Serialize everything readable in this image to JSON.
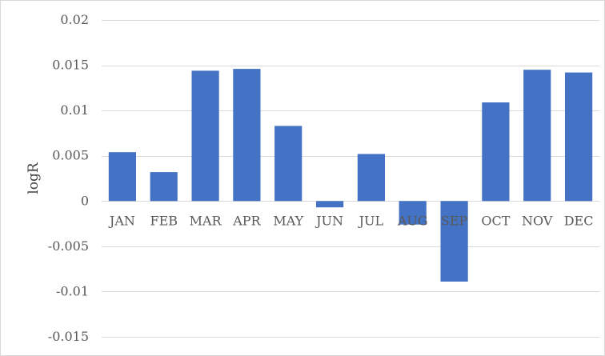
{
  "chart_data": {
    "type": "bar",
    "title": "",
    "xlabel": "",
    "ylabel": "logR",
    "categories": [
      "JAN",
      "FEB",
      "MAR",
      "APR",
      "MAY",
      "JUN",
      "JUL",
      "AUG",
      "SEP",
      "OCT",
      "NOV",
      "DEC"
    ],
    "values": [
      0.0054,
      0.0032,
      0.0144,
      0.0146,
      0.0083,
      -0.0007,
      0.0052,
      -0.0026,
      -0.0089,
      0.0109,
      0.0145,
      0.0142
    ],
    "ylim": [
      -0.015,
      0.02
    ],
    "yticks": [
      0.02,
      0.015,
      0.01,
      0.005,
      0,
      -0.005,
      -0.01,
      -0.015
    ],
    "ytick_labels": [
      "0.02",
      "0.015",
      "0.01",
      "0.005",
      "0",
      "-0.005",
      "-0.01",
      "-0.015"
    ],
    "grid": true,
    "legend": "none",
    "bar_color": "#4472C4"
  }
}
